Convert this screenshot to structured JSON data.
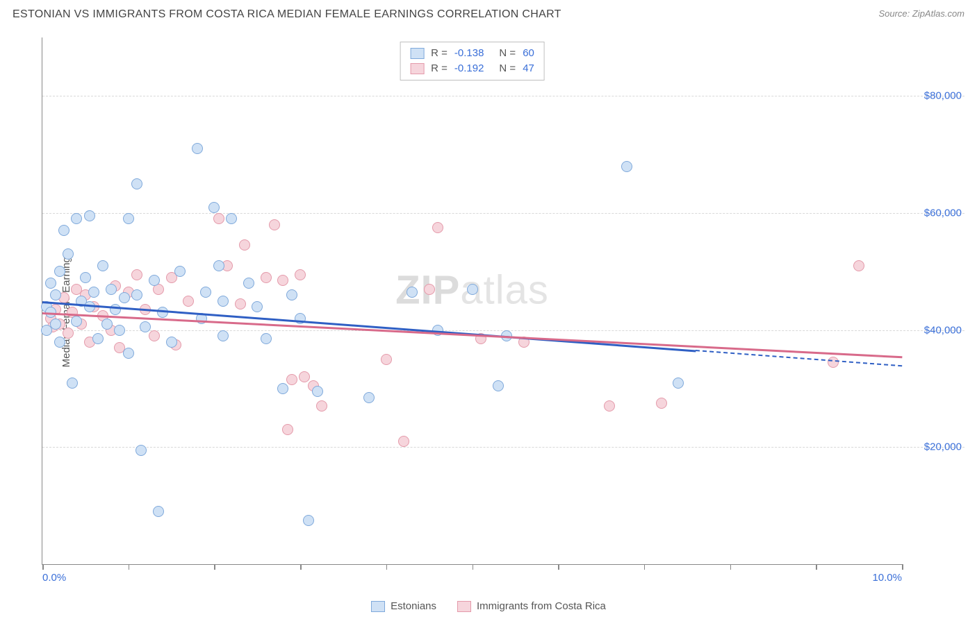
{
  "title": "ESTONIAN VS IMMIGRANTS FROM COSTA RICA MEDIAN FEMALE EARNINGS CORRELATION CHART",
  "source_label": "Source: ZipAtlas.com",
  "ylabel": "Median Female Earnings",
  "watermark_bold": "ZIP",
  "watermark_thin": "atlas",
  "chart": {
    "type": "scatter",
    "xlim": [
      0,
      10
    ],
    "ylim": [
      0,
      90000
    ],
    "x_ticks": [
      0,
      1,
      2,
      3,
      4,
      5,
      6,
      7,
      8,
      9,
      10
    ],
    "x_tick_labels": {
      "0": "0.0%",
      "10": "10.0%"
    },
    "y_gridlines": [
      20000,
      40000,
      60000,
      80000
    ],
    "y_tick_labels": [
      "$20,000",
      "$40,000",
      "$60,000",
      "$80,000"
    ],
    "background_color": "#ffffff",
    "grid_color": "#d8d8d8",
    "axis_color": "#888888",
    "tick_label_color": "#3a6fd8",
    "marker_radius": 8,
    "series": [
      {
        "key": "estonians",
        "label": "Estonians",
        "R": "-0.138",
        "N": "60",
        "fill": "#cfe1f5",
        "stroke": "#7fa9db",
        "trend_color": "#2f5fc4",
        "trend": {
          "x1": 0.0,
          "y1": 45000,
          "x2": 10.0,
          "y2": 34000
        },
        "trend_dash_from_x": 7.6,
        "points": [
          [
            0.05,
            44000
          ],
          [
            0.05,
            40000
          ],
          [
            0.1,
            48000
          ],
          [
            0.1,
            43000
          ],
          [
            0.15,
            46000
          ],
          [
            0.15,
            41000
          ],
          [
            0.2,
            50000
          ],
          [
            0.2,
            38000
          ],
          [
            0.25,
            57000
          ],
          [
            0.3,
            53000
          ],
          [
            0.35,
            31000
          ],
          [
            0.4,
            59000
          ],
          [
            0.4,
            41500
          ],
          [
            0.45,
            45000
          ],
          [
            0.5,
            49000
          ],
          [
            0.55,
            59500
          ],
          [
            0.55,
            44000
          ],
          [
            0.6,
            46500
          ],
          [
            0.65,
            38500
          ],
          [
            0.7,
            51000
          ],
          [
            0.75,
            41000
          ],
          [
            0.8,
            47000
          ],
          [
            0.85,
            43500
          ],
          [
            0.9,
            40000
          ],
          [
            0.95,
            45500
          ],
          [
            1.0,
            59000
          ],
          [
            1.0,
            36000
          ],
          [
            1.1,
            65000
          ],
          [
            1.1,
            46000
          ],
          [
            1.15,
            19500
          ],
          [
            1.2,
            40500
          ],
          [
            1.3,
            48500
          ],
          [
            1.35,
            9000
          ],
          [
            1.4,
            43000
          ],
          [
            1.5,
            38000
          ],
          [
            1.6,
            50000
          ],
          [
            1.8,
            71000
          ],
          [
            1.85,
            42000
          ],
          [
            1.9,
            46500
          ],
          [
            2.0,
            61000
          ],
          [
            2.05,
            51000
          ],
          [
            2.1,
            39000
          ],
          [
            2.1,
            45000
          ],
          [
            2.2,
            59000
          ],
          [
            2.4,
            48000
          ],
          [
            2.5,
            44000
          ],
          [
            2.6,
            38500
          ],
          [
            2.8,
            30000
          ],
          [
            2.9,
            46000
          ],
          [
            3.0,
            42000
          ],
          [
            3.1,
            7500
          ],
          [
            3.2,
            29500
          ],
          [
            3.8,
            28500
          ],
          [
            4.3,
            46500
          ],
          [
            4.6,
            40000
          ],
          [
            5.0,
            47000
          ],
          [
            5.3,
            30500
          ],
          [
            5.4,
            39000
          ],
          [
            6.8,
            68000
          ],
          [
            7.4,
            31000
          ]
        ]
      },
      {
        "key": "costa_rica",
        "label": "Immigrants from Costa Rica",
        "R": "-0.192",
        "N": "47",
        "fill": "#f6d5dc",
        "stroke": "#e49aaa",
        "trend_color": "#d86a8a",
        "trend": {
          "x1": 0.0,
          "y1": 43000,
          "x2": 10.0,
          "y2": 35500
        },
        "points": [
          [
            0.1,
            42000
          ],
          [
            0.12,
            40500
          ],
          [
            0.15,
            43500
          ],
          [
            0.2,
            41000
          ],
          [
            0.25,
            45500
          ],
          [
            0.3,
            39500
          ],
          [
            0.35,
            43000
          ],
          [
            0.4,
            47000
          ],
          [
            0.45,
            41000
          ],
          [
            0.5,
            46000
          ],
          [
            0.55,
            38000
          ],
          [
            0.6,
            44000
          ],
          [
            0.7,
            42500
          ],
          [
            0.8,
            40000
          ],
          [
            0.85,
            47500
          ],
          [
            0.9,
            37000
          ],
          [
            1.0,
            46500
          ],
          [
            1.1,
            49500
          ],
          [
            1.2,
            43500
          ],
          [
            1.3,
            39000
          ],
          [
            1.35,
            47000
          ],
          [
            1.5,
            49000
          ],
          [
            1.55,
            37500
          ],
          [
            1.7,
            45000
          ],
          [
            2.05,
            59000
          ],
          [
            2.15,
            51000
          ],
          [
            2.3,
            44500
          ],
          [
            2.35,
            54500
          ],
          [
            2.6,
            49000
          ],
          [
            2.7,
            58000
          ],
          [
            2.8,
            48500
          ],
          [
            2.85,
            23000
          ],
          [
            2.9,
            31500
          ],
          [
            3.0,
            49500
          ],
          [
            3.05,
            32000
          ],
          [
            3.15,
            30500
          ],
          [
            3.25,
            27000
          ],
          [
            4.0,
            35000
          ],
          [
            4.2,
            21000
          ],
          [
            4.5,
            47000
          ],
          [
            4.6,
            57500
          ],
          [
            5.1,
            38500
          ],
          [
            5.6,
            38000
          ],
          [
            6.6,
            27000
          ],
          [
            7.2,
            27500
          ],
          [
            9.2,
            34500
          ],
          [
            9.5,
            51000
          ]
        ]
      }
    ]
  },
  "legend_top_rows": [
    {
      "swatch_series": 0,
      "R_lab": "R =",
      "N_lab": "N ="
    },
    {
      "swatch_series": 1,
      "R_lab": "R =",
      "N_lab": "N ="
    }
  ]
}
